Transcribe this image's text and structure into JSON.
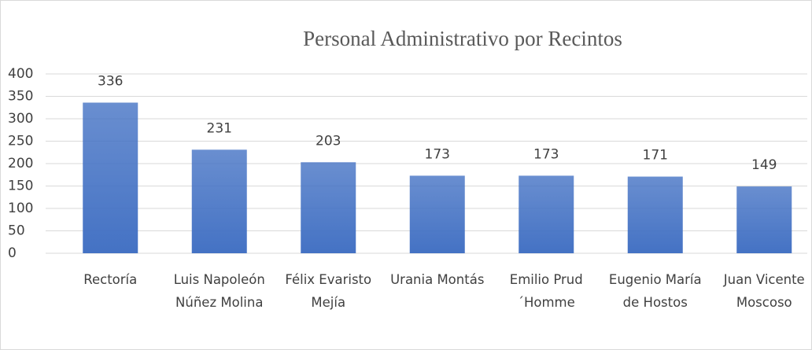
{
  "chart_data": {
    "type": "bar",
    "title": "Personal Administrativo por Recintos",
    "categories": [
      "Rectoría",
      "Luis Napoleón Núñez Molina",
      "Félix Evaristo Mejía",
      "Urania Montás",
      "Emilio Prud´Homme",
      "Eugenio María de Hostos",
      "Juan Vicente Moscoso"
    ],
    "values": [
      336,
      231,
      203,
      173,
      173,
      171,
      149
    ],
    "color": "#4472c4",
    "ylim": [
      0,
      400
    ],
    "yticks": [
      0,
      50,
      100,
      150,
      200,
      250,
      300,
      350,
      400
    ],
    "grid": true
  }
}
